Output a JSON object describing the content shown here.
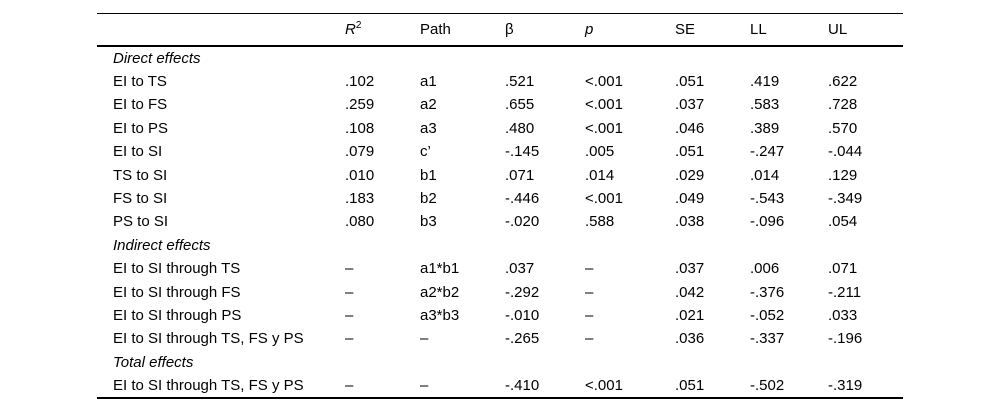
{
  "page": {
    "background_color": "#ffffff",
    "text_color": "#000000",
    "rule_color": "#000000"
  },
  "table": {
    "columns": [
      {
        "text": "",
        "sup": "",
        "italic": false
      },
      {
        "text": "R",
        "sup": "2",
        "italic": true
      },
      {
        "text": "Path",
        "sup": "",
        "italic": false
      },
      {
        "text": "β",
        "sup": "",
        "italic": false
      },
      {
        "text": "p",
        "sup": "",
        "italic": true
      },
      {
        "text": "SE",
        "sup": "",
        "italic": false
      },
      {
        "text": "LL",
        "sup": "",
        "italic": false
      },
      {
        "text": "UL",
        "sup": "",
        "italic": false
      }
    ],
    "rows": [
      {
        "type": "section",
        "label": "Direct effects"
      },
      {
        "type": "data",
        "cells": [
          "EI to TS",
          ".102",
          "a1",
          ".521",
          "<.001",
          ".051",
          ".419",
          ".622"
        ]
      },
      {
        "type": "data",
        "cells": [
          "EI to FS",
          ".259",
          "a2",
          ".655",
          "<.001",
          ".037",
          ".583",
          ".728"
        ]
      },
      {
        "type": "data",
        "cells": [
          "EI to PS",
          ".108",
          "a3",
          ".480",
          "<.001",
          ".046",
          ".389",
          ".570"
        ]
      },
      {
        "type": "data",
        "cells": [
          "EI to SI",
          ".079",
          "c’",
          "-.145",
          ".005",
          ".051",
          "-.247",
          "-.044"
        ]
      },
      {
        "type": "data",
        "cells": [
          "TS to SI",
          ".010",
          "b1",
          ".071",
          ".014",
          ".029",
          ".014",
          ".129"
        ]
      },
      {
        "type": "data",
        "cells": [
          "FS to SI",
          ".183",
          "b2",
          "-.446",
          "<.001",
          ".049",
          "-.543",
          "-.349"
        ]
      },
      {
        "type": "data",
        "cells": [
          "PS to SI",
          ".080",
          "b3",
          "-.020",
          ".588",
          ".038",
          "-.096",
          ".054"
        ]
      },
      {
        "type": "section",
        "label": "Indirect effects"
      },
      {
        "type": "data",
        "cells": [
          "EI to SI through TS",
          "–",
          "a1*b1",
          ".037",
          "–",
          ".037",
          ".006",
          ".071"
        ]
      },
      {
        "type": "data",
        "cells": [
          "EI to SI through FS",
          "–",
          "a2*b2",
          "-.292",
          "–",
          ".042",
          "-.376",
          "-.211"
        ]
      },
      {
        "type": "data",
        "cells": [
          "EI to SI through PS",
          "–",
          "a3*b3",
          "-.010",
          "–",
          ".021",
          "-.052",
          ".033"
        ]
      },
      {
        "type": "data",
        "cells": [
          "EI to SI through TS, FS y PS",
          "–",
          "–",
          "-.265",
          "–",
          ".036",
          "-.337",
          "-.196"
        ]
      },
      {
        "type": "section",
        "label": "Total effects"
      },
      {
        "type": "data",
        "cells": [
          "EI to SI through TS, FS y PS",
          "–",
          "–",
          "-.410",
          "<.001",
          ".051",
          "-.502",
          "-.319"
        ]
      }
    ]
  }
}
